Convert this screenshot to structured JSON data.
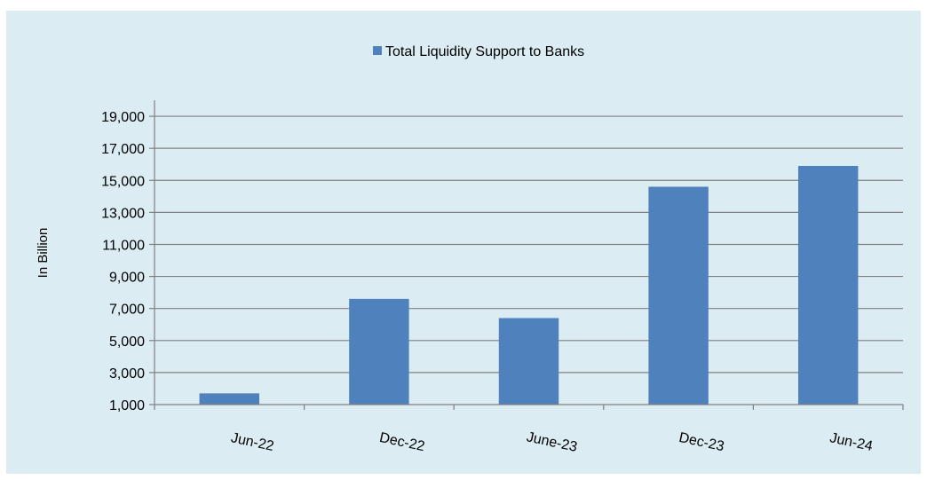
{
  "chart_data": {
    "type": "bar",
    "categories": [
      "Jun-22",
      "Dec-22",
      "June-23",
      "Dec-23",
      "Jun-24"
    ],
    "series": [
      {
        "name": "Total Liquidity Support to Banks",
        "values": [
          1700,
          7600,
          6400,
          14600,
          15900
        ],
        "color": "#4f81bd"
      }
    ],
    "ylabel": "In Billion",
    "xlabel": "",
    "ylim": [
      1000,
      20000
    ],
    "yticks": [
      1000,
      3000,
      5000,
      7000,
      9000,
      11000,
      13000,
      15000,
      17000,
      19000
    ],
    "ytick_labels": [
      "1,000",
      "3,000",
      "5,000",
      "7,000",
      "9,000",
      "11,000",
      "13,000",
      "15,000",
      "17,000",
      "19,000"
    ],
    "grid": true,
    "legend_position": "top-center",
    "background_color": "#dbecf2",
    "grid_color": "#808080"
  }
}
